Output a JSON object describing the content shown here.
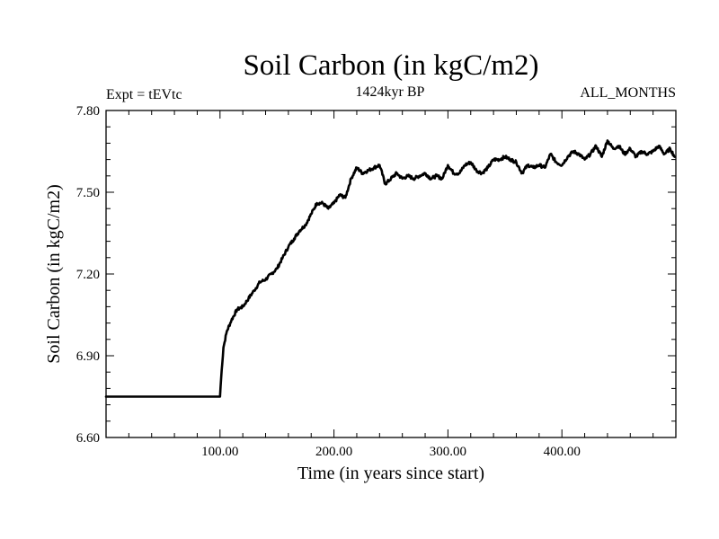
{
  "chart_data": {
    "type": "line",
    "title": "Soil Carbon (in kgC/m2)",
    "subtitle_left": "Expt = tEVtc",
    "subtitle_center": "1424kyr BP",
    "subtitle_right": "ALL_MONTHS",
    "xlabel": "Time (in years since start)",
    "ylabel": "Soil Carbon (in kgC/m2)",
    "xlim": [
      0,
      500
    ],
    "ylim": [
      6.6,
      7.8
    ],
    "x_ticks": [
      100,
      200,
      300,
      400
    ],
    "x_tick_labels": [
      "100.00",
      "200.00",
      "300.00",
      "400.00"
    ],
    "y_ticks": [
      6.6,
      6.9,
      7.2,
      7.5,
      7.8
    ],
    "y_tick_labels": [
      "6.60",
      "6.90",
      "7.20",
      "7.50",
      "7.80"
    ],
    "grid": false,
    "series": [
      {
        "name": "Soil Carbon",
        "color": "#000000",
        "x": [
          0,
          100,
          101,
          103,
          106,
          110,
          115,
          120,
          125,
          130,
          135,
          140,
          145,
          150,
          155,
          160,
          165,
          170,
          175,
          180,
          185,
          190,
          195,
          200,
          205,
          210,
          215,
          220,
          225,
          230,
          235,
          240,
          245,
          250,
          255,
          260,
          265,
          270,
          275,
          280,
          285,
          290,
          295,
          300,
          305,
          310,
          315,
          320,
          325,
          330,
          335,
          340,
          345,
          350,
          355,
          360,
          365,
          370,
          375,
          380,
          385,
          390,
          395,
          400,
          405,
          410,
          415,
          420,
          425,
          430,
          435,
          440,
          445,
          450,
          455,
          460,
          465,
          470,
          475,
          480,
          485,
          490,
          495,
          499
        ],
        "values": [
          6.75,
          6.75,
          6.82,
          6.93,
          6.99,
          7.03,
          7.07,
          7.08,
          7.11,
          7.14,
          7.17,
          7.18,
          7.2,
          7.22,
          7.26,
          7.3,
          7.33,
          7.36,
          7.38,
          7.42,
          7.46,
          7.46,
          7.44,
          7.46,
          7.49,
          7.48,
          7.55,
          7.59,
          7.57,
          7.58,
          7.59,
          7.6,
          7.53,
          7.55,
          7.57,
          7.55,
          7.56,
          7.55,
          7.56,
          7.57,
          7.55,
          7.56,
          7.55,
          7.6,
          7.57,
          7.57,
          7.6,
          7.61,
          7.58,
          7.57,
          7.59,
          7.62,
          7.62,
          7.63,
          7.62,
          7.61,
          7.57,
          7.6,
          7.59,
          7.6,
          7.59,
          7.64,
          7.61,
          7.6,
          7.63,
          7.65,
          7.64,
          7.62,
          7.64,
          7.67,
          7.63,
          7.69,
          7.66,
          7.67,
          7.64,
          7.66,
          7.63,
          7.65,
          7.64,
          7.65,
          7.67,
          7.64,
          7.66,
          7.63
        ]
      }
    ]
  }
}
